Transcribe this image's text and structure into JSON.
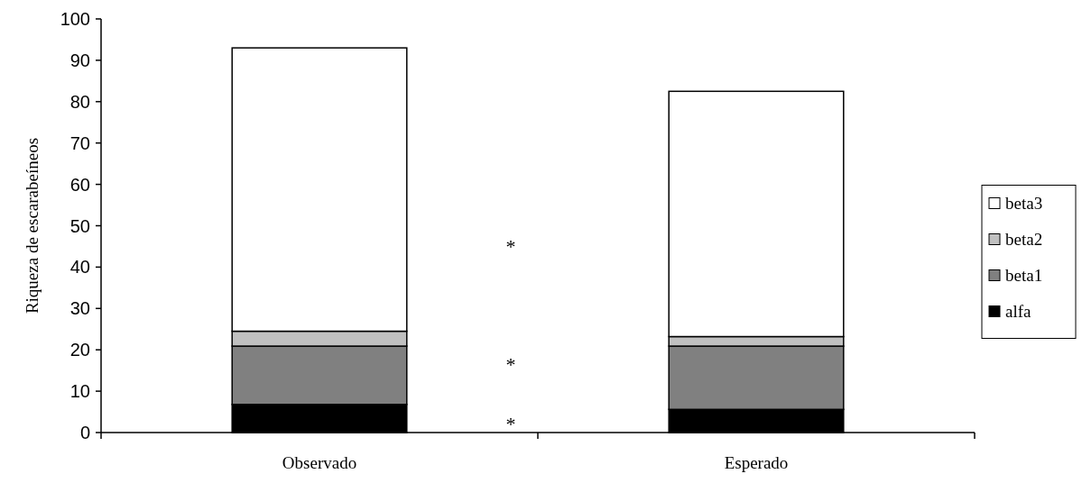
{
  "chart_data": {
    "type": "bar",
    "stacked": true,
    "ylabel": "Riqueza de escarabeíneos",
    "categories": [
      "Observado",
      "Esperado"
    ],
    "series": [
      {
        "name": "alfa",
        "color": "#000000",
        "values": [
          6.8,
          5.6
        ]
      },
      {
        "name": "beta1",
        "color": "#808080",
        "values": [
          14.1,
          15.3
        ]
      },
      {
        "name": "beta2",
        "color": "#c0c0c0",
        "values": [
          3.6,
          2.3
        ]
      },
      {
        "name": "beta3",
        "color": "#ffffff",
        "values": [
          68.5,
          59.3
        ]
      }
    ],
    "ylim": [
      0,
      100
    ],
    "yticks": [
      0,
      10,
      20,
      30,
      40,
      50,
      60,
      70,
      80,
      90,
      100
    ],
    "legend": "right",
    "grid": false,
    "annotations": [
      "*",
      "*",
      "*"
    ]
  }
}
